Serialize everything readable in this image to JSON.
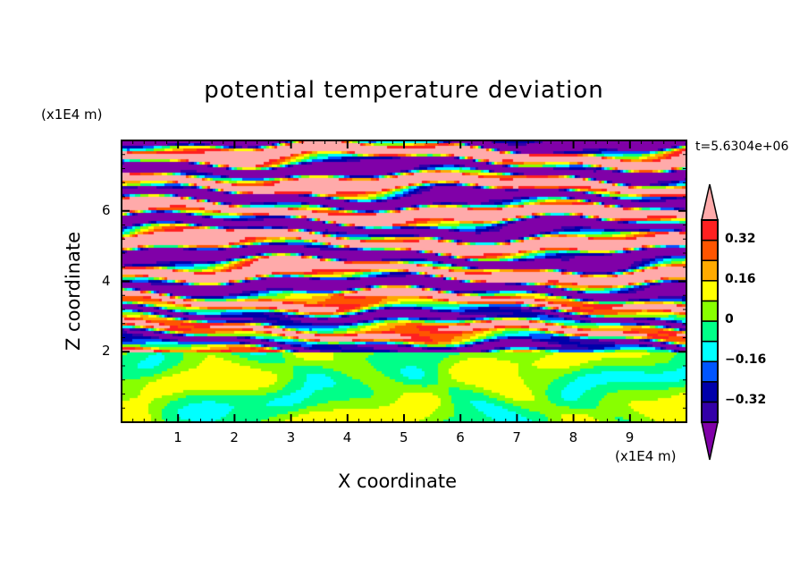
{
  "chart_data": {
    "type": "heatmap",
    "title": "potential temperature deviation",
    "xlabel": "X coordinate",
    "ylabel": "Z coordinate",
    "x_unit": "(x1E4 m)",
    "y_unit": "(x1E4 m)",
    "xlim": [
      0,
      10
    ],
    "ylim": [
      0,
      8
    ],
    "x_ticks": [
      "1",
      "2",
      "3",
      "4",
      "5",
      "6",
      "7",
      "8",
      "9"
    ],
    "y_ticks": [
      "2",
      "4",
      "6"
    ],
    "time_label": "t=5.6304e+06",
    "grid": false,
    "colorbar": {
      "levels": [
        -0.4,
        -0.32,
        -0.24,
        -0.16,
        -0.08,
        0,
        0.08,
        0.16,
        0.24,
        0.32,
        0.4
      ],
      "tick_labels": [
        "0.32",
        "0.16",
        "0",
        "−0.16",
        "−0.32"
      ],
      "tick_values": [
        0.32,
        0.16,
        0,
        -0.16,
        -0.32
      ],
      "colors_low_to_high": [
        "#8000a8",
        "#3300a8",
        "#0000aa",
        "#0055ff",
        "#00ffff",
        "#00ff88",
        "#88ff00",
        "#ffff00",
        "#ffaa00",
        "#ff5500",
        "#ff2020",
        "#ffaaaa"
      ],
      "extend": "both",
      "placement": "right"
    },
    "description_of_field": "layered horizontal bands of strong positive and negative deviation above z=2; near-zero values (between -0.08 and 0.08) below z=2"
  }
}
